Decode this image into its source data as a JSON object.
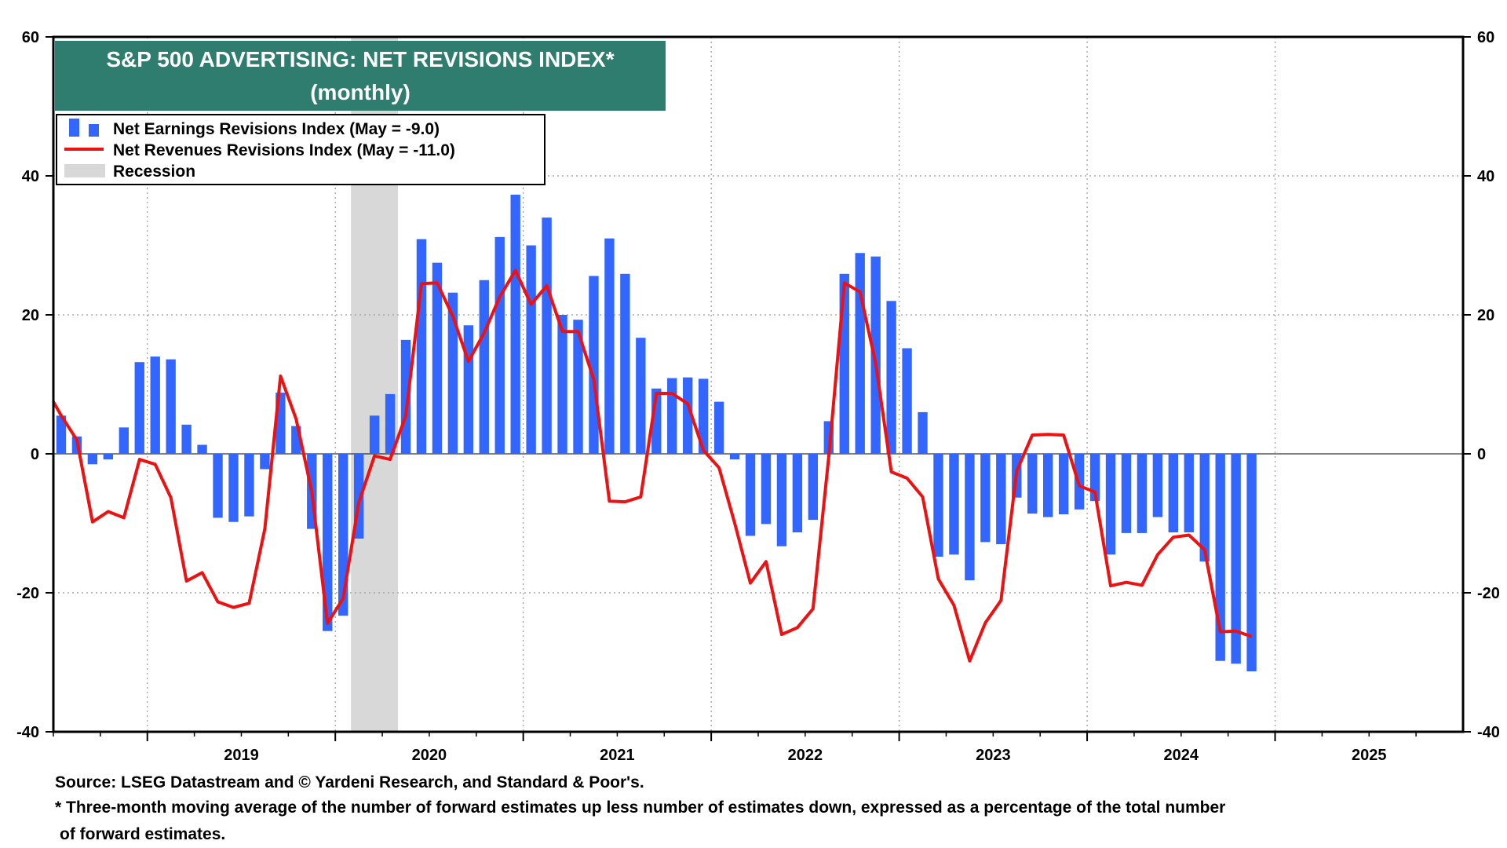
{
  "chart_data": {
    "type": "bar",
    "title": "S&P 500 ADVERTISING: NET REVISIONS INDEX*",
    "subtitle": "(monthly)",
    "ylim": [
      -40,
      60
    ],
    "y_ticks": [
      -40,
      -20,
      0,
      20,
      40,
      60
    ],
    "y_tick_labels": [
      "-40",
      "-20",
      "0",
      "20",
      "40",
      "60"
    ],
    "x_labels": [
      "2019",
      "2020",
      "2021",
      "2022",
      "2023",
      "2024",
      "2025"
    ],
    "start": "2018-07",
    "end": "2025-12",
    "grid": true,
    "legend": {
      "position": "top-left",
      "earnings_label": "Net Earnings Revisions Index (May  = -9.0)",
      "revenues_label": "Net Revenues Revisions Index (May  = -11.0)",
      "recession_label": "Recession"
    },
    "recession": {
      "start": "2020-02",
      "end": "2020-04"
    },
    "series": [
      {
        "name": "Net Earnings Revisions Index",
        "kind": "bar",
        "color": "#3366ff",
        "start": "2018-07",
        "values": [
          5.5,
          2.5,
          -1.5,
          -0.8,
          3.8,
          13.2,
          14.0,
          13.6,
          4.2,
          1.3,
          -9.2,
          -9.8,
          -9.0,
          -2.2,
          8.8,
          4.0,
          -10.8,
          -25.5,
          -23.3,
          -12.2,
          5.5,
          8.6,
          16.4,
          30.9,
          27.5,
          23.2,
          18.5,
          25.0,
          31.2,
          37.3,
          30.0,
          34.0,
          20.0,
          19.3,
          25.6,
          31.0,
          25.9,
          16.7,
          9.4,
          10.9,
          11.0,
          10.8,
          7.5,
          -0.8,
          -11.8,
          -10.1,
          -13.3,
          -11.3,
          -9.5,
          4.7,
          25.9,
          28.9,
          28.4,
          22.0,
          15.2,
          6.0,
          -14.8,
          -14.5,
          -18.2,
          -12.7,
          -13.0,
          -6.3,
          -8.6,
          -9.1,
          -8.7,
          -8.0,
          -6.8,
          -14.5,
          -11.4,
          -11.4,
          -9.1,
          -11.3,
          -11.3,
          -15.5,
          -29.8,
          -30.2,
          -31.3
        ]
      },
      {
        "name": "Net Revenues Revisions Index",
        "kind": "line",
        "color": "#ee1111",
        "start": "2018-06",
        "values": [
          7.5,
          5.5,
          2.0,
          -9.8,
          -8.3,
          -9.2,
          -0.8,
          -1.5,
          -6.3,
          -18.3,
          -17.1,
          -21.3,
          -22.1,
          -21.5,
          -10.8,
          11.2,
          5.0,
          -5.5,
          -24.4,
          -20.8,
          -7.0,
          -0.3,
          -0.8,
          5.5,
          24.5,
          24.6,
          19.8,
          13.3,
          17.4,
          22.6,
          26.4,
          21.5,
          24.2,
          17.6,
          17.6,
          10.7,
          -6.8,
          -6.9,
          -6.2,
          8.7,
          8.7,
          7.2,
          0.5,
          -2.0,
          -10.0,
          -18.6,
          -15.5,
          -26.0,
          -25.0,
          -22.3,
          -0.5,
          24.6,
          23.3,
          13.0,
          -2.6,
          -3.5,
          -6.2,
          -18.0,
          -21.8,
          -29.8,
          -24.3,
          -21.1,
          -2.5,
          2.7,
          2.8,
          2.7,
          -4.6,
          -5.5,
          -19.0,
          -18.5,
          -18.9,
          -14.5,
          -12.0,
          -11.7,
          -13.8,
          -25.6,
          -25.5,
          -26.3
        ]
      }
    ]
  },
  "colors": {
    "title_bg": "#2e7d6e",
    "bar": "#3366ff",
    "line": "#ee1111",
    "recession": "#d8d8d8"
  },
  "footnotes": {
    "source": "Source: LSEG Datastream and © Yardeni Research, and Standard & Poor's.",
    "note_line1": "* Three-month moving average of the number of forward estimates up less number of estimates down, expressed as a percentage of the total number",
    "note_line2": "of forward estimates."
  }
}
